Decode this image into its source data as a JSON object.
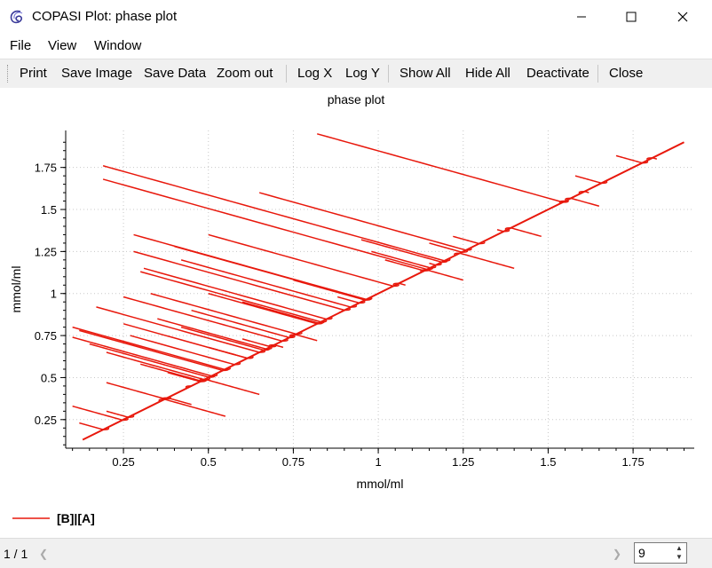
{
  "window": {
    "title": "COPASI Plot: phase plot"
  },
  "menu": {
    "file": "File",
    "view": "View",
    "window": "Window"
  },
  "toolbar": {
    "print": "Print",
    "save_image": "Save Image",
    "save_data": "Save Data",
    "zoom_out": "Zoom out",
    "log_x": "Log X",
    "log_y": "Log Y",
    "show_all": "Show All",
    "hide_all": "Hide All",
    "deactivate": "Deactivate",
    "close": "Close"
  },
  "status": {
    "page": "1 / 1",
    "spin_value": "9"
  },
  "colors": {
    "curve": "#e8180c",
    "grid": "#c8c8c8"
  },
  "chart_data": {
    "type": "line",
    "title": "phase plot",
    "xlabel": "mmol/ml",
    "ylabel": "mmol/ml",
    "xlim": [
      0.08,
      1.93
    ],
    "ylim": [
      0.08,
      1.97
    ],
    "x_ticks": [
      "0.25",
      "0.5",
      "0.75",
      "1",
      "1.25",
      "1.5",
      "1.75"
    ],
    "y_ticks": [
      "0.25",
      "0.5",
      "0.75",
      "1",
      "1.25",
      "1.5",
      "1.75"
    ],
    "grid": true,
    "legend": {
      "position": "bottom-left",
      "entries": [
        "[B]|[A]"
      ]
    },
    "series": [
      {
        "name": "[B]|[A]",
        "description": "trajectories from many initial conditions converging to the diagonal B = A",
        "starts": [
          [
            0.82,
            1.95
          ],
          [
            0.19,
            1.76
          ],
          [
            0.19,
            1.68
          ],
          [
            0.28,
            1.35
          ],
          [
            0.28,
            1.25
          ],
          [
            0.5,
            1.35
          ],
          [
            0.4,
            1.28
          ],
          [
            0.42,
            1.2
          ],
          [
            0.31,
            1.15
          ],
          [
            0.3,
            1.13
          ],
          [
            0.33,
            1.0
          ],
          [
            0.5,
            1.0
          ],
          [
            0.25,
            0.98
          ],
          [
            0.17,
            0.92
          ],
          [
            0.6,
            0.95
          ],
          [
            0.45,
            0.9
          ],
          [
            0.35,
            0.85
          ],
          [
            0.25,
            0.82
          ],
          [
            0.1,
            0.8
          ],
          [
            0.12,
            0.78
          ],
          [
            0.1,
            0.74
          ],
          [
            0.15,
            0.7
          ],
          [
            0.2,
            0.65
          ],
          [
            0.27,
            0.75
          ],
          [
            0.42,
            0.8
          ],
          [
            0.6,
            0.73
          ],
          [
            0.5,
            0.68
          ],
          [
            0.82,
            0.72
          ],
          [
            0.72,
            0.68
          ],
          [
            0.3,
            0.58
          ],
          [
            0.38,
            0.53
          ],
          [
            0.2,
            0.47
          ],
          [
            0.45,
            0.45
          ],
          [
            0.65,
            0.4
          ],
          [
            0.1,
            0.33
          ],
          [
            0.2,
            0.3
          ],
          [
            0.45,
            0.34
          ],
          [
            0.12,
            0.23
          ],
          [
            0.55,
            0.27
          ],
          [
            0.98,
            1.25
          ],
          [
            1.15,
            1.3
          ],
          [
            1.22,
            1.34
          ],
          [
            1.35,
            1.38
          ],
          [
            1.48,
            1.34
          ],
          [
            0.95,
            1.32
          ],
          [
            1.02,
            1.2
          ],
          [
            1.15,
            1.18
          ],
          [
            1.08,
            1.05
          ],
          [
            1.25,
            1.08
          ],
          [
            1.4,
            1.15
          ],
          [
            0.88,
            0.98
          ],
          [
            0.75,
            1.08
          ],
          [
            1.82,
            1.8
          ],
          [
            1.7,
            1.82
          ],
          [
            1.58,
            1.7
          ],
          [
            1.62,
            1.6
          ],
          [
            1.55,
            1.55
          ],
          [
            1.65,
            1.52
          ],
          [
            0.65,
            1.6
          ]
        ],
        "limit_line": [
          [
            0.13,
            0.13
          ],
          [
            1.9,
            1.9
          ]
        ]
      }
    ]
  }
}
